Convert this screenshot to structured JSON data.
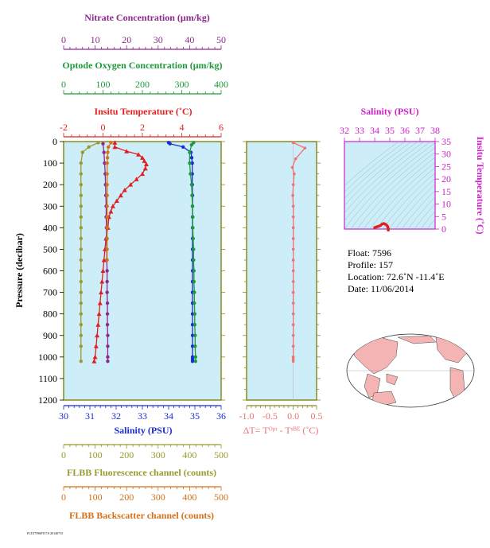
{
  "colors": {
    "nitrate": "#8b2a8b",
    "oxygen": "#1f9a3a",
    "temperature": "#e02020",
    "salinity": "#1a2ad6",
    "fluorescence": "#9a9a30",
    "backscatter": "#d4701a",
    "delta_t": "#f07070",
    "ts_axis": "#cc22cc",
    "panel_bg": "#cdeef8",
    "frame": "#8a8a20",
    "land": "#f4b4b4"
  },
  "labels": {
    "nitrate_title": "Nitrate Concentration (μm/kg)",
    "oxygen_title": "Optode Oxygen Concentration (μm/kg)",
    "temperature_title": "Insitu Temperature (˚C)",
    "salinity_title": "Salinity (PSU)",
    "pressure_title": "Pressure (decibar)",
    "fluorescence_title": "FLBB Fluorescence channel (counts)",
    "backscatter_title": "FLBB Backscatter channel (counts)",
    "delta_t_title": "ΔT= Tᴼᵖᵗ - Tˢᴮᴱ (˚C)",
    "ts_salinity_title": "Salinity (PSU)",
    "ts_temperature_title": "Insitu Temperature (˚C)",
    "footer": "FLTZ7596P157A 20140715"
  },
  "info": {
    "float": "Float:  7596",
    "profile": "Profile:  157",
    "location": "Location:  72.6˚N  -11.4˚E",
    "date": "Date:  11/06/2014"
  },
  "axes": {
    "nitrate": {
      "min": 0,
      "max": 50,
      "ticks": [
        "0",
        "10",
        "20",
        "30",
        "40",
        "50"
      ]
    },
    "oxygen": {
      "min": 0,
      "max": 400,
      "ticks": [
        "0",
        "100",
        "200",
        "300",
        "400"
      ]
    },
    "temperature": {
      "min": -2,
      "max": 6,
      "ticks": [
        "-2",
        "0",
        "2",
        "4",
        "6"
      ]
    },
    "salinity": {
      "min": 30,
      "max": 36,
      "ticks": [
        "30",
        "31",
        "32",
        "33",
        "34",
        "35",
        "36"
      ]
    },
    "pressure": {
      "min": 0,
      "max": 1200,
      "ticks": [
        "0",
        "100",
        "200",
        "300",
        "400",
        "500",
        "600",
        "700",
        "800",
        "900",
        "1000",
        "1100",
        "1200"
      ]
    },
    "fluorescence": {
      "min": 0,
      "max": 500,
      "ticks": [
        "0",
        "100",
        "200",
        "300",
        "400",
        "500"
      ]
    },
    "backscatter": {
      "min": 0,
      "max": 500,
      "ticks": [
        "0",
        "100",
        "200",
        "300",
        "400",
        "500"
      ]
    },
    "delta_t": {
      "min": -1.0,
      "max": 0.5,
      "ticks": [
        "-1.0",
        "-0.5",
        "0.0",
        "0.5"
      ]
    },
    "ts_salinity": {
      "min": 32,
      "max": 38,
      "ticks": [
        "32",
        "33",
        "34",
        "35",
        "36",
        "37",
        "38"
      ]
    },
    "ts_temperature": {
      "min": 0,
      "max": 35,
      "ticks": [
        "0",
        "5",
        "10",
        "15",
        "20",
        "25",
        "30",
        "35"
      ]
    }
  },
  "chart_data": [
    {
      "type": "scatter",
      "title": "",
      "ylabel": "Pressure (decibar)",
      "ylim": [
        1200,
        0
      ],
      "series": [
        {
          "name": "Insitu Temperature (˚C)",
          "x_axis": "temperature",
          "marker": "triangle",
          "x": [
            0.6,
            0.6,
            1.2,
            1.8,
            2.0,
            2.1,
            2.2,
            2.15,
            2.0,
            1.7,
            1.4,
            1.1,
            0.9,
            0.7,
            0.5,
            0.4,
            0.3,
            0.25,
            0.15,
            0.1,
            0.05,
            0.0,
            -0.05,
            -0.1,
            -0.15,
            -0.2,
            -0.25,
            -0.3,
            -0.35,
            -0.4,
            -0.45
          ],
          "y": [
            5,
            25,
            45,
            60,
            75,
            90,
            105,
            125,
            150,
            175,
            200,
            225,
            250,
            275,
            300,
            325,
            350,
            400,
            450,
            500,
            550,
            600,
            650,
            700,
            750,
            800,
            850,
            900,
            950,
            1000,
            1020
          ]
        },
        {
          "name": "Salinity (PSU)",
          "x_axis": "salinity",
          "marker": "circle",
          "x": [
            34.0,
            34.05,
            34.55,
            34.85,
            34.88,
            34.9,
            34.9,
            34.9,
            34.91,
            34.91,
            34.91,
            34.91,
            34.91,
            34.91,
            34.91,
            34.91,
            34.91,
            34.91,
            34.91,
            34.91,
            34.91,
            34.91,
            34.91,
            34.91,
            34.91,
            34.91
          ],
          "y": [
            5,
            10,
            25,
            50,
            75,
            100,
            150,
            200,
            250,
            300,
            350,
            400,
            450,
            500,
            550,
            600,
            650,
            700,
            750,
            800,
            850,
            900,
            950,
            1000,
            1010,
            1020
          ]
        },
        {
          "name": "Optode Oxygen Concentration (μm/kg)",
          "x_axis": "oxygen",
          "marker": "circle",
          "x": [
            330,
            325,
            320,
            320,
            322,
            325,
            326,
            327,
            328,
            328,
            329,
            330,
            330,
            331,
            331,
            332,
            332,
            333,
            333,
            334,
            334,
            335,
            335
          ],
          "y": [
            5,
            15,
            50,
            100,
            150,
            200,
            250,
            300,
            350,
            400,
            450,
            500,
            550,
            600,
            650,
            700,
            750,
            800,
            850,
            900,
            950,
            1000,
            1020
          ]
        },
        {
          "name": "Nitrate Concentration (μm/kg)",
          "x_axis": "nitrate",
          "marker": "circle",
          "x": [
            12.5,
            12.8,
            13.0,
            13.2,
            13.3,
            13.4,
            13.5,
            13.5,
            13.6,
            13.6,
            13.7,
            13.7,
            13.8,
            13.8,
            13.8,
            13.9,
            13.9,
            13.9,
            14.0,
            14.0,
            14.0,
            14.0
          ],
          "y": [
            10,
            50,
            100,
            150,
            200,
            250,
            300,
            350,
            400,
            450,
            500,
            550,
            600,
            650,
            700,
            750,
            800,
            850,
            900,
            950,
            1000,
            1020
          ]
        },
        {
          "name": "FLBB Fluorescence channel (counts)",
          "x_axis": "fluorescence",
          "marker": "circle",
          "x": [
            110,
            80,
            60,
            55,
            55,
            55,
            55,
            55,
            55,
            55,
            55,
            55,
            55,
            55,
            55,
            55,
            55,
            55,
            55,
            55,
            55,
            55
          ],
          "y": [
            5,
            25,
            50,
            100,
            150,
            200,
            250,
            300,
            350,
            400,
            450,
            500,
            550,
            600,
            650,
            700,
            750,
            800,
            850,
            900,
            950,
            1020
          ]
        },
        {
          "name": "FLBB Backscatter channel (counts)",
          "x_axis": "backscatter",
          "marker": "circle",
          "x": [
            150,
            142,
            140,
            139,
            138,
            138,
            138,
            138,
            138,
            138,
            138,
            138,
            138,
            138
          ],
          "y": [
            5,
            25,
            50,
            75,
            100,
            150,
            200,
            250,
            300,
            350,
            400,
            450,
            500,
            550
          ]
        }
      ]
    },
    {
      "type": "line",
      "xlabel": "ΔT= Tᴼᵖᵗ - Tˢᴮᴱ (˚C)",
      "xlim": [
        -1.0,
        0.5
      ],
      "ylim": [
        1200,
        0
      ],
      "x": [
        0.0,
        0.25,
        0.05,
        -0.02,
        0.02,
        0.0,
        -0.01,
        0.0,
        0.0,
        0.0,
        0.0,
        0.0,
        0.0,
        0.0,
        0.0,
        0.0,
        0.0,
        0.0,
        0.0,
        0.0,
        0.0,
        0.0,
        0.0,
        0.0
      ],
      "y": [
        5,
        30,
        80,
        120,
        150,
        200,
        250,
        300,
        350,
        400,
        450,
        500,
        550,
        600,
        650,
        700,
        750,
        800,
        850,
        900,
        950,
        1000,
        1010,
        1020
      ]
    },
    {
      "type": "scatter",
      "xlabel": "Salinity (PSU)",
      "ylabel": "Insitu Temperature (˚C)",
      "xlim": [
        32,
        38
      ],
      "ylim": [
        0,
        35
      ],
      "x": [
        34.9,
        34.9,
        34.88,
        34.86,
        34.8,
        34.7,
        34.6,
        34.5,
        34.4,
        34.3,
        34.2,
        34.1,
        34.0
      ],
      "y": [
        -0.4,
        0.0,
        0.5,
        1.0,
        1.5,
        2.0,
        2.2,
        2.0,
        1.5,
        1.2,
        1.0,
        0.8,
        0.6
      ]
    }
  ]
}
